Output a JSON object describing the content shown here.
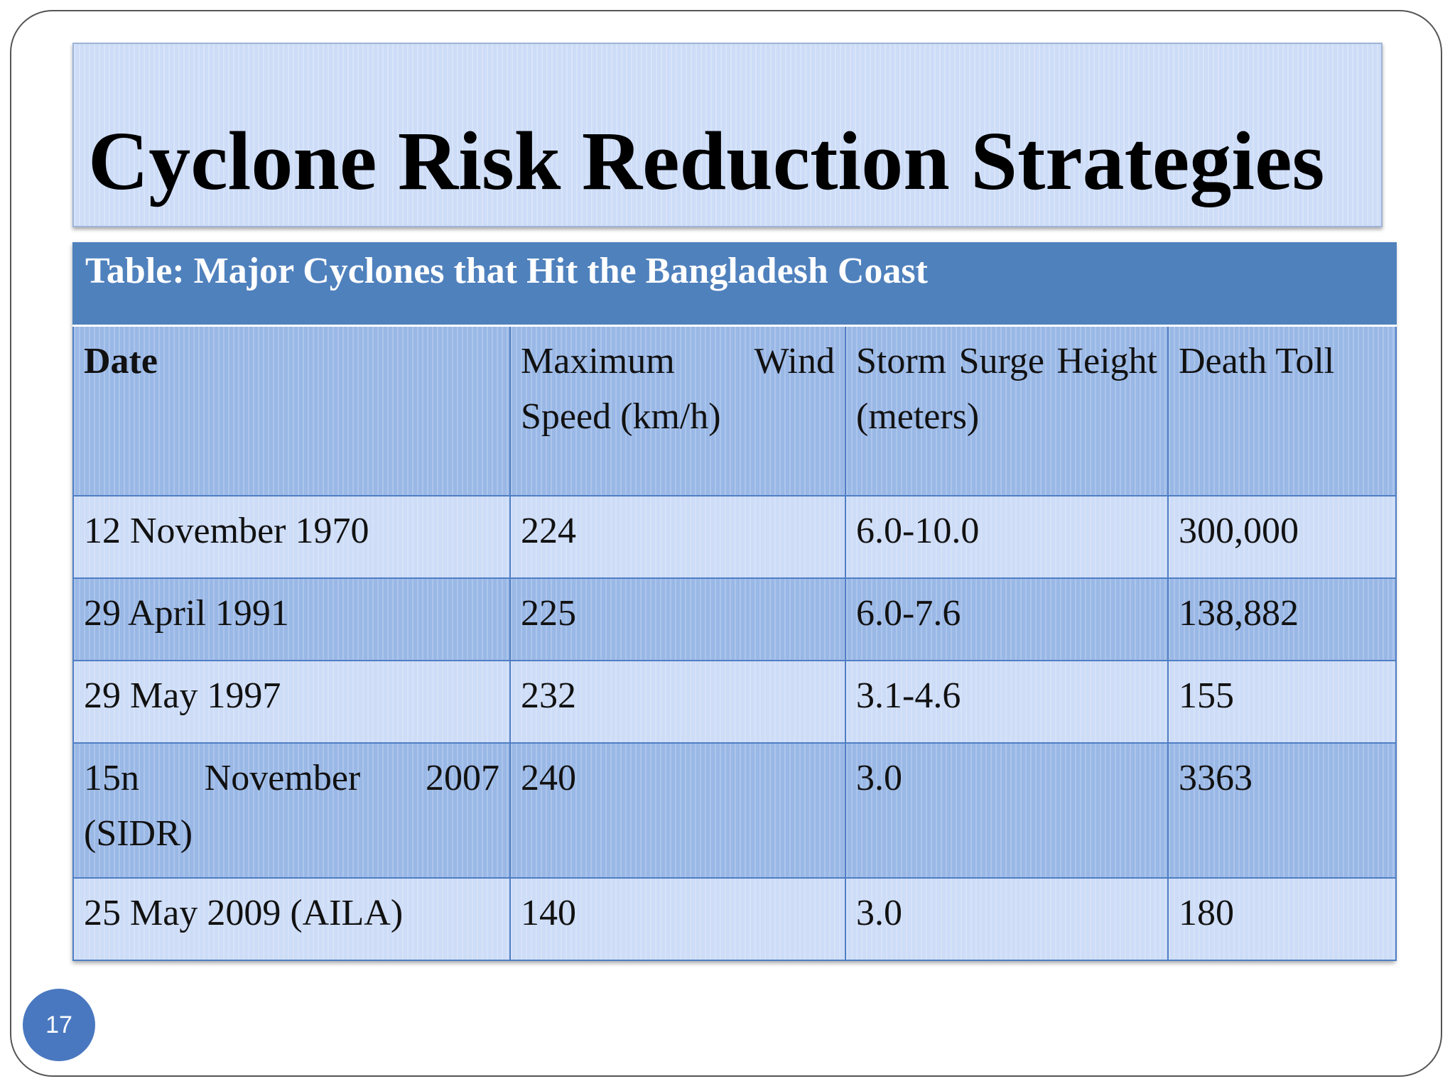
{
  "slide": {
    "title": "Cyclone Risk Reduction Strategies",
    "page_number": "17"
  },
  "table": {
    "caption": "Table: Major Cyclones that Hit the Bangladesh Coast",
    "headers": [
      "Date",
      "Maximum Wind Speed (km/h)",
      "Storm Surge Height (meters)",
      "Death Toll"
    ],
    "rows": [
      [
        "12 November 1970",
        "224",
        "6.0-10.0",
        "300,000"
      ],
      [
        "29 April 1991",
        "225",
        "6.0-7.6",
        "138,882"
      ],
      [
        "29 May 1997",
        "232",
        "3.1-4.6",
        "155"
      ],
      [
        "15n November 2007 (SIDR)",
        "240",
        "3.0",
        "3363"
      ],
      [
        "25 May 2009 (AILA)",
        "140",
        "3.0",
        "180"
      ]
    ]
  },
  "colors": {
    "caption_band": "#4f81bd",
    "row_light": "#cddcf7",
    "row_dark": "#9ab8e6",
    "page_badge": "#4a78c0"
  }
}
